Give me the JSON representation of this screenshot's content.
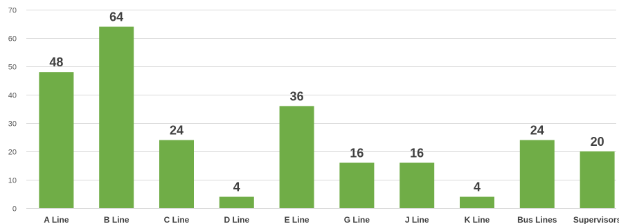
{
  "chart_data": {
    "type": "bar",
    "categories": [
      "A Line",
      "B Line",
      "C Line",
      "D Line",
      "E Line",
      "G Line",
      "J Line",
      "K Line",
      "Bus Lines",
      "Supervisors"
    ],
    "values": [
      48,
      64,
      24,
      4,
      36,
      16,
      16,
      4,
      24,
      20
    ],
    "data_labels": [
      "48",
      "64",
      "24",
      "4",
      "36",
      "16",
      "16",
      "4",
      "24",
      "20"
    ],
    "y_ticks": [
      "0",
      "10",
      "20",
      "30",
      "40",
      "50",
      "60",
      "70"
    ],
    "ylim": [
      0,
      70
    ],
    "grid": true,
    "legend": "none",
    "bar_color": "#70ad47",
    "grid_color": "#d9d9d9",
    "tick_label_color": "#595959",
    "category_label_color": "#404040",
    "data_label_color": "#404040"
  }
}
